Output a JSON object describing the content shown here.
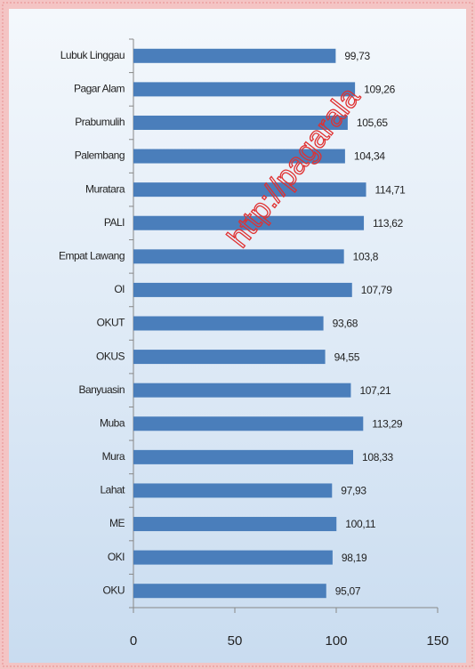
{
  "chart_data": {
    "type": "hbar",
    "categories": [
      "Lubuk Linggau",
      "Pagar Alam",
      "Prabumulih",
      "Palembang",
      "Muratara",
      "PALI",
      "Empat Lawang",
      "OI",
      "OKUT",
      "OKUS",
      "Banyuasin",
      "Muba",
      "Mura",
      "Lahat",
      "ME",
      "OKI",
      "OKU"
    ],
    "values": [
      99.73,
      109.26,
      105.65,
      104.34,
      114.71,
      113.62,
      103.8,
      107.79,
      93.68,
      94.55,
      107.21,
      113.29,
      108.33,
      97.93,
      100.11,
      98.19,
      95.07
    ],
    "value_labels": [
      "99,73",
      "109,26",
      "105,65",
      "104,34",
      "114,71",
      "113,62",
      "103,8",
      "107,79",
      "93,68",
      "94,55",
      "107,21",
      "113,29",
      "108,33",
      "97,93",
      "100,11",
      "98,19",
      "95,07"
    ],
    "color": "#4a7ebb",
    "xlim": [
      0,
      150
    ],
    "xticks": [
      0,
      50,
      100,
      150
    ],
    "watermark": "http://pagarala"
  }
}
